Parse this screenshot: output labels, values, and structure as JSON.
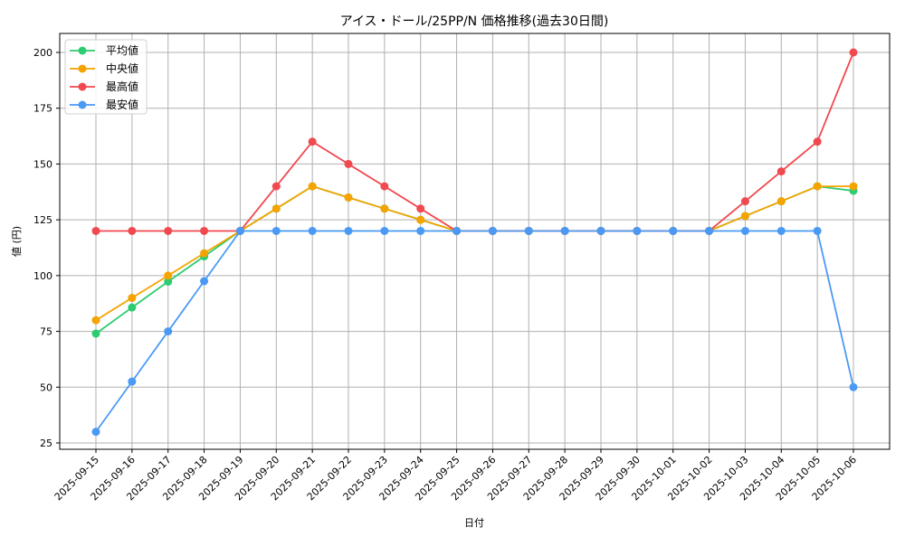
{
  "chart_data": {
    "type": "line",
    "title": "アイス・ドール/25PP/N 価格推移(過去30日間)",
    "xlabel": "日付",
    "ylabel": "値 (円)",
    "ylim": [
      22,
      208
    ],
    "yticks": [
      25,
      50,
      75,
      100,
      125,
      150,
      175,
      200
    ],
    "grid": true,
    "legend_position": "upper left",
    "categories": [
      "2025-09-15",
      "2025-09-16",
      "2025-09-17",
      "2025-09-18",
      "2025-09-19",
      "2025-09-20",
      "2025-09-21",
      "2025-09-22",
      "2025-09-23",
      "2025-09-24",
      "2025-09-25",
      "2025-09-26",
      "2025-09-27",
      "2025-09-28",
      "2025-09-29",
      "2025-09-30",
      "2025-10-01",
      "2025-10-02",
      "2025-10-03",
      "2025-10-04",
      "2025-10-05",
      "2025-10-06"
    ],
    "series": [
      {
        "name": "平均値",
        "color": "#2ecc71",
        "values": [
          74,
          85.7,
          97.3,
          108.6,
          120,
          130,
          140,
          135,
          130,
          125,
          120,
          120,
          120,
          120,
          120,
          120,
          120,
          120,
          126.7,
          133.3,
          140,
          138
        ]
      },
      {
        "name": "中央値",
        "color": "#f5a300",
        "values": [
          80,
          90,
          100,
          110,
          120,
          130,
          140,
          135,
          130,
          125,
          120,
          120,
          120,
          120,
          120,
          120,
          120,
          120,
          126.7,
          133.3,
          140,
          140
        ]
      },
      {
        "name": "最高値",
        "color": "#f0494f",
        "values": [
          120,
          120,
          120,
          120,
          120,
          140,
          160,
          150,
          140,
          130,
          120,
          120,
          120,
          120,
          120,
          120,
          120,
          120,
          133.3,
          146.7,
          160,
          200
        ]
      },
      {
        "name": "最安値",
        "color": "#4a9af5",
        "values": [
          30,
          52.5,
          75,
          97.5,
          120,
          120,
          120,
          120,
          120,
          120,
          120,
          120,
          120,
          120,
          120,
          120,
          120,
          120,
          120,
          120,
          120,
          50
        ]
      }
    ]
  }
}
